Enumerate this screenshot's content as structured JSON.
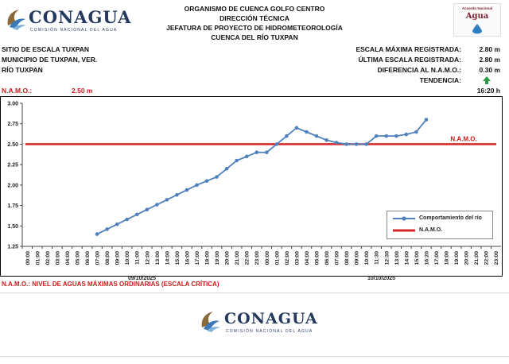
{
  "header": {
    "logo_text": "CONAGUA",
    "logo_sub": "COMISIÓN NACIONAL DEL AGUA",
    "lines": [
      "ORGANISMO DE CUENCA GOLFO CENTRO",
      "DIRECCIÓN TÉCNICA",
      "JEFATURA DE PROYECTO DE HIDROMETEOROLOGÍA",
      "CUENCA DEL RÍO TUXPAN"
    ],
    "badge_top": "Acuerdo Nacional",
    "badge_word": "Agua"
  },
  "site": {
    "station": "SITIO DE ESCALA TUXPAN",
    "municipality": "MUNICIPIO DE TUXPAN, VER.",
    "river": "RÍO TUXPAN",
    "namo_label": "N.A.M.O.:",
    "namo_value": "2.50 m"
  },
  "stats": {
    "max_label": "ESCALA MÁXIMA REGISTRADA:",
    "max_value": "2.80 m",
    "last_label": "ÚLTIMA ESCALA REGISTRADA:",
    "last_value": "2.80 m",
    "diff_label": "DIFERENCIA AL N.A.M.O.:",
    "diff_value": "0.30 m",
    "trend_label": "TENDENCIA:",
    "trend_icon": "arrow-up-icon",
    "time": "16:20 h"
  },
  "footer": {
    "note": "N.A.M.O.: NIVEL DE AGUAS MÁXIMAS ORDINARIAS (ESCALA CRÍTICA)",
    "logo_text": "CONAGUA",
    "logo_sub": "COMISIÓN NACIONAL DEL AGUA"
  },
  "colors": {
    "series": "#4f81bd",
    "namo": "#d62728",
    "red_text": "#cc1a1a",
    "logo": "#233a5e"
  },
  "chart_data": {
    "type": "line",
    "categories": [
      "00:00",
      "01:00",
      "02:00",
      "03:00",
      "04:00",
      "05:00",
      "06:00",
      "07:00",
      "08:00",
      "09:00",
      "10:00",
      "11:00",
      "12:00",
      "13:00",
      "14:00",
      "15:00",
      "16:00",
      "17:00",
      "18:00",
      "19:00",
      "20:00",
      "21:00",
      "22:00",
      "23:00",
      "00:00",
      "01:00",
      "02:00",
      "03:00",
      "04:00",
      "05:00",
      "06:00",
      "07:00",
      "08:00",
      "09:00",
      "10:00",
      "11:30",
      "12:30",
      "13:00",
      "14:00",
      "15:00",
      "16:20",
      "17:00",
      "18:00",
      "19:00",
      "20:00",
      "21:00",
      "22:00",
      "23:00"
    ],
    "series": [
      {
        "name": "Comportamiento del río",
        "values": [
          null,
          null,
          null,
          null,
          null,
          null,
          null,
          1.4,
          1.46,
          1.52,
          1.58,
          1.64,
          1.7,
          1.76,
          1.82,
          1.88,
          1.94,
          2.0,
          2.05,
          2.1,
          2.2,
          2.3,
          2.35,
          2.4,
          2.4,
          2.5,
          2.6,
          2.7,
          2.65,
          2.6,
          2.55,
          2.52,
          2.5,
          2.5,
          2.5,
          2.6,
          2.6,
          2.6,
          2.62,
          2.65,
          2.8,
          null,
          null,
          null,
          null,
          null,
          null,
          null
        ]
      },
      {
        "name": "N.A.M.O.",
        "constant": 2.5
      }
    ],
    "namo_label": "N.A.M.O.",
    "date_labels": [
      "09/10/2025",
      "10/10/2025"
    ],
    "yticks": [
      "3.00",
      "2.75",
      "2.50",
      "2.25",
      "2.00",
      "1.75",
      "1.50",
      "1.25"
    ],
    "ylim": [
      1.25,
      3.0
    ],
    "grid": false,
    "legend_position": "bottom-right"
  }
}
